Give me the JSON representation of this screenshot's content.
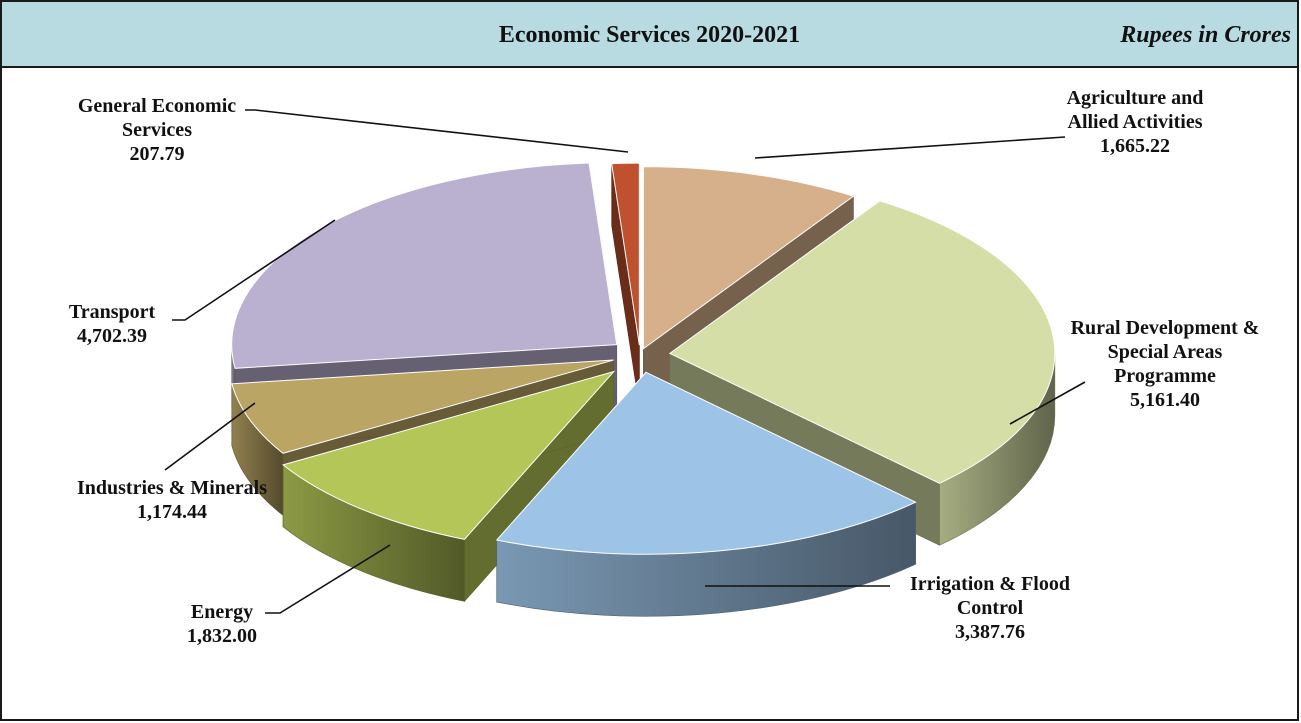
{
  "header": {
    "title": "Economic Services 2020-2021",
    "unit": "Rupees in Crores"
  },
  "chart_data": {
    "type": "pie",
    "title": "Economic Services 2020-2021",
    "unit": "Rupees in Crores",
    "legend": "none",
    "slices": [
      {
        "label": "Agriculture and Allied Activities",
        "label_lines": [
          "Agriculture and",
          "Allied Activities"
        ],
        "value": 1665.22,
        "value_text": "1,665.22",
        "color": "#d5b08b"
      },
      {
        "label": "Rural Development & Special Areas Programme",
        "label_lines": [
          "Rural Development &",
          "Special Areas",
          "Programme"
        ],
        "value": 5161.4,
        "value_text": "5,161.40",
        "color": "#d5dea6"
      },
      {
        "label": "Irrigation & Flood Control",
        "label_lines": [
          "Irrigation & Flood",
          "Control"
        ],
        "value": 3387.76,
        "value_text": "3,387.76",
        "color": "#9dc3e6"
      },
      {
        "label": "Energy",
        "label_lines": [
          "Energy"
        ],
        "value": 1832.0,
        "value_text": "1,832.00",
        "color": "#b4c657"
      },
      {
        "label": "Industries & Minerals",
        "label_lines": [
          "Industries & Minerals"
        ],
        "value": 1174.44,
        "value_text": "1,174.44",
        "color": "#bba565"
      },
      {
        "label": "Transport",
        "label_lines": [
          "Transport"
        ],
        "value": 4702.39,
        "value_text": "4,702.39",
        "color": "#bab0cf"
      },
      {
        "label": "General Economic Services",
        "label_lines": [
          "General Economic",
          "Services"
        ],
        "value": 207.79,
        "value_text": "207.79",
        "color": "#c0512e"
      }
    ]
  }
}
